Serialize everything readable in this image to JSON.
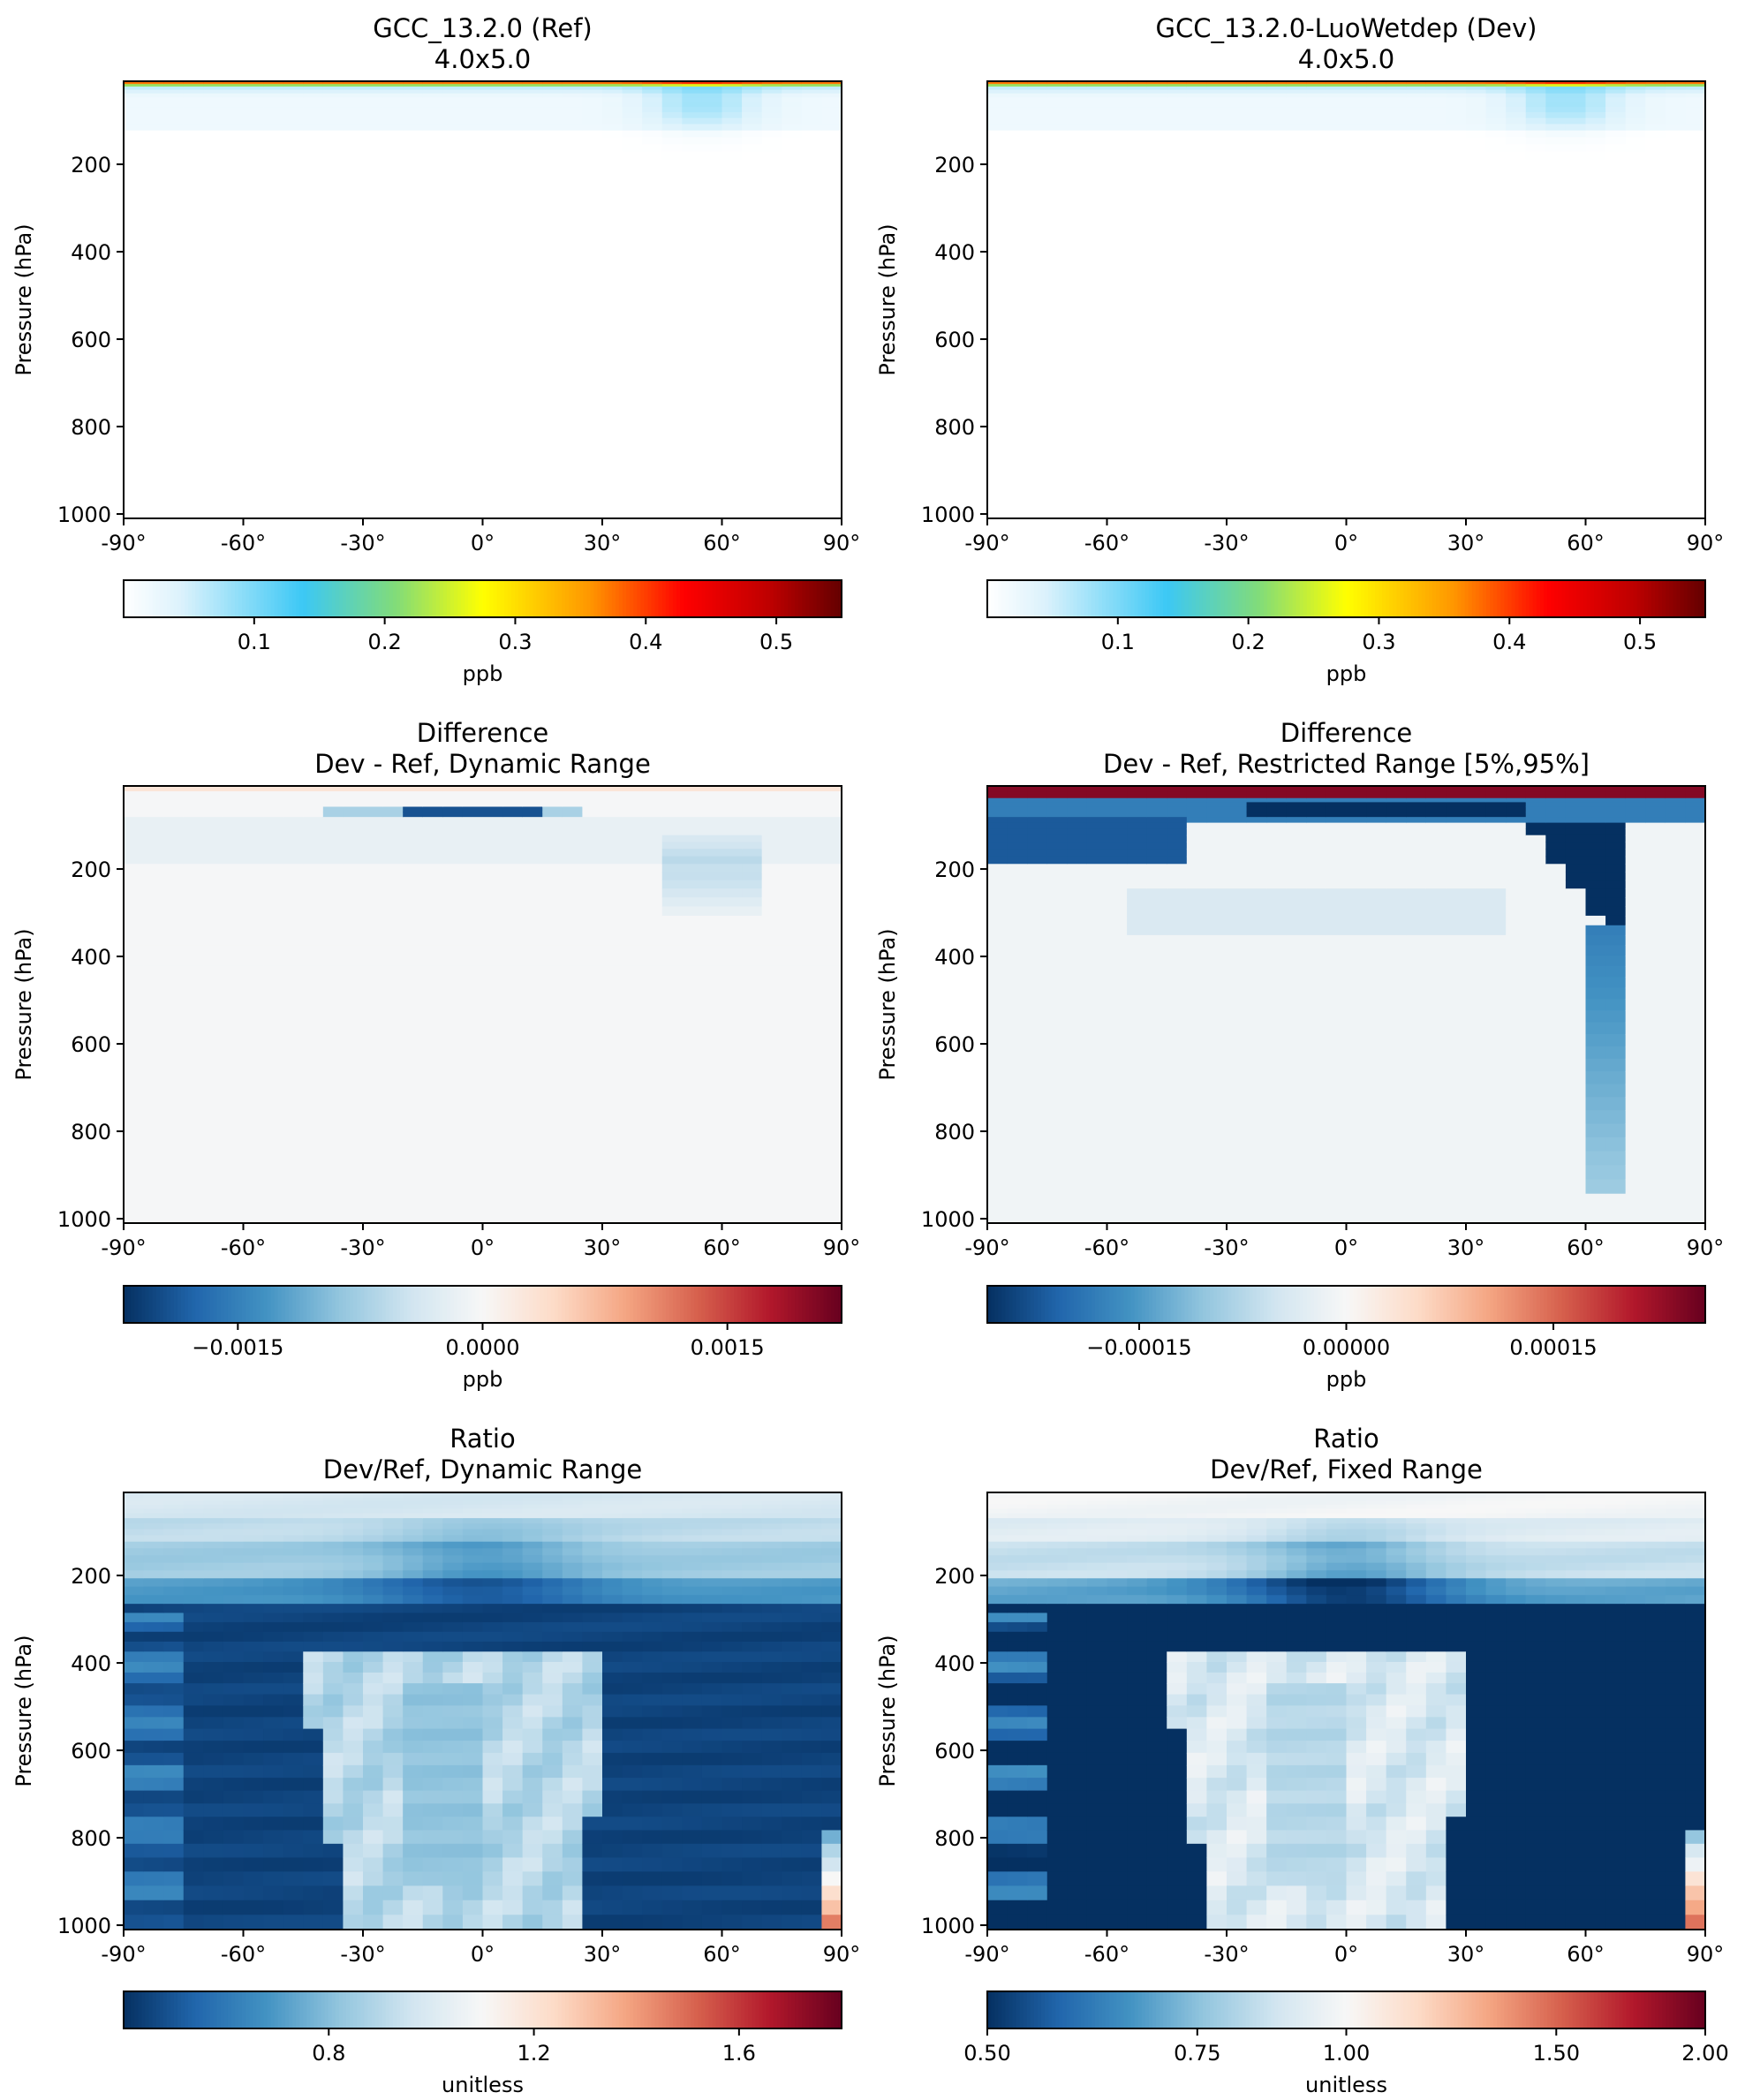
{
  "chart_data": [
    {
      "type": "heatmap",
      "title": "GCC_13.2.0 (Ref)",
      "subtitle": "4.0x5.0",
      "ylabel": "Pressure (hPa)",
      "xticks": [
        "-90°",
        "-60°",
        "-30°",
        "0°",
        "30°",
        "60°",
        "90°"
      ],
      "yticks": [
        "200",
        "400",
        "600",
        "800",
        "1000"
      ],
      "ylim": [
        1000,
        0
      ],
      "xlim": [
        -90,
        90
      ],
      "colormap": "WhGrYlRd",
      "colorbar": {
        "label": "ppb",
        "ticks": [
          "0.1",
          "0.2",
          "0.3",
          "0.4",
          "0.5"
        ],
        "tick_values": [
          0.1,
          0.2,
          0.3,
          0.4,
          0.5
        ],
        "range": [
          0.0,
          0.55
        ]
      },
      "field": "highest values (~0.5 ppb) in a thin layer at the model top, light blue (<0.1 ppb) down to ~150 hPa near 60°N, near zero elsewhere"
    },
    {
      "type": "heatmap",
      "title": "GCC_13.2.0-LuoWetdep (Dev)",
      "subtitle": "4.0x5.0",
      "ylabel": "Pressure (hPa)",
      "xticks": [
        "-90°",
        "-60°",
        "-30°",
        "0°",
        "30°",
        "60°",
        "90°"
      ],
      "yticks": [
        "200",
        "400",
        "600",
        "800",
        "1000"
      ],
      "ylim": [
        1000,
        0
      ],
      "xlim": [
        -90,
        90
      ],
      "colormap": "WhGrYlRd",
      "colorbar": {
        "label": "ppb",
        "ticks": [
          "0.1",
          "0.2",
          "0.3",
          "0.4",
          "0.5"
        ],
        "tick_values": [
          0.1,
          0.2,
          0.3,
          0.4,
          0.5
        ],
        "range": [
          0.0,
          0.55
        ]
      },
      "field": "nearly identical to Ref"
    },
    {
      "type": "heatmap",
      "title": "Difference",
      "subtitle": "Dev - Ref, Dynamic Range",
      "ylabel": "Pressure (hPa)",
      "xticks": [
        "-90°",
        "-60°",
        "-30°",
        "0°",
        "30°",
        "60°",
        "90°"
      ],
      "yticks": [
        "200",
        "400",
        "600",
        "800",
        "1000"
      ],
      "ylim": [
        1000,
        0
      ],
      "xlim": [
        -90,
        90
      ],
      "colormap": "RdBu_r",
      "colorbar": {
        "label": "ppb",
        "ticks": [
          "−0.0015",
          "0.0000",
          "0.0015"
        ],
        "tick_values": [
          -0.0015,
          0.0,
          0.0015
        ],
        "range": [
          -0.0022,
          0.0022
        ]
      }
    },
    {
      "type": "heatmap",
      "title": "Difference",
      "subtitle": "Dev - Ref, Restricted Range [5%,95%]",
      "ylabel": "Pressure (hPa)",
      "xticks": [
        "-90°",
        "-60°",
        "-30°",
        "0°",
        "30°",
        "60°",
        "90°"
      ],
      "yticks": [
        "200",
        "400",
        "600",
        "800",
        "1000"
      ],
      "ylim": [
        1000,
        0
      ],
      "xlim": [
        -90,
        90
      ],
      "colormap": "RdBu_r",
      "colorbar": {
        "label": "ppb",
        "ticks": [
          "−0.00015",
          "0.00000",
          "0.00015"
        ],
        "tick_values": [
          -0.00015,
          0.0,
          0.00015
        ],
        "range": [
          -0.00026,
          0.00026
        ]
      }
    },
    {
      "type": "heatmap",
      "title": "Ratio",
      "subtitle": "Dev/Ref, Dynamic Range",
      "ylabel": "Pressure (hPa)",
      "xticks": [
        "-90°",
        "-60°",
        "-30°",
        "0°",
        "30°",
        "60°",
        "90°"
      ],
      "yticks": [
        "200",
        "400",
        "600",
        "800",
        "1000"
      ],
      "ylim": [
        1000,
        0
      ],
      "xlim": [
        -90,
        90
      ],
      "colormap": "RdBu_r",
      "colorbar": {
        "label": "unitless",
        "ticks": [
          "0.8",
          "1.2",
          "1.6"
        ],
        "tick_values": [
          0.8,
          1.2,
          1.6
        ],
        "range": [
          0.4,
          1.8
        ]
      }
    },
    {
      "type": "heatmap",
      "title": "Ratio",
      "subtitle": "Dev/Ref, Fixed Range",
      "ylabel": "Pressure (hPa)",
      "xticks": [
        "-90°",
        "-60°",
        "-30°",
        "0°",
        "30°",
        "60°",
        "90°"
      ],
      "yticks": [
        "200",
        "400",
        "600",
        "800",
        "1000"
      ],
      "ylim": [
        1000,
        0
      ],
      "xlim": [
        -90,
        90
      ],
      "colormap": "RdBu_r",
      "colorbar": {
        "label": "unitless",
        "ticks": [
          "0.50",
          "0.75",
          "1.00",
          "1.50",
          "2.00"
        ],
        "tick_values": [
          0.5,
          0.75,
          1.0,
          1.5,
          2.0
        ],
        "range": [
          0.5,
          2.0
        ],
        "scale": "log"
      }
    }
  ]
}
